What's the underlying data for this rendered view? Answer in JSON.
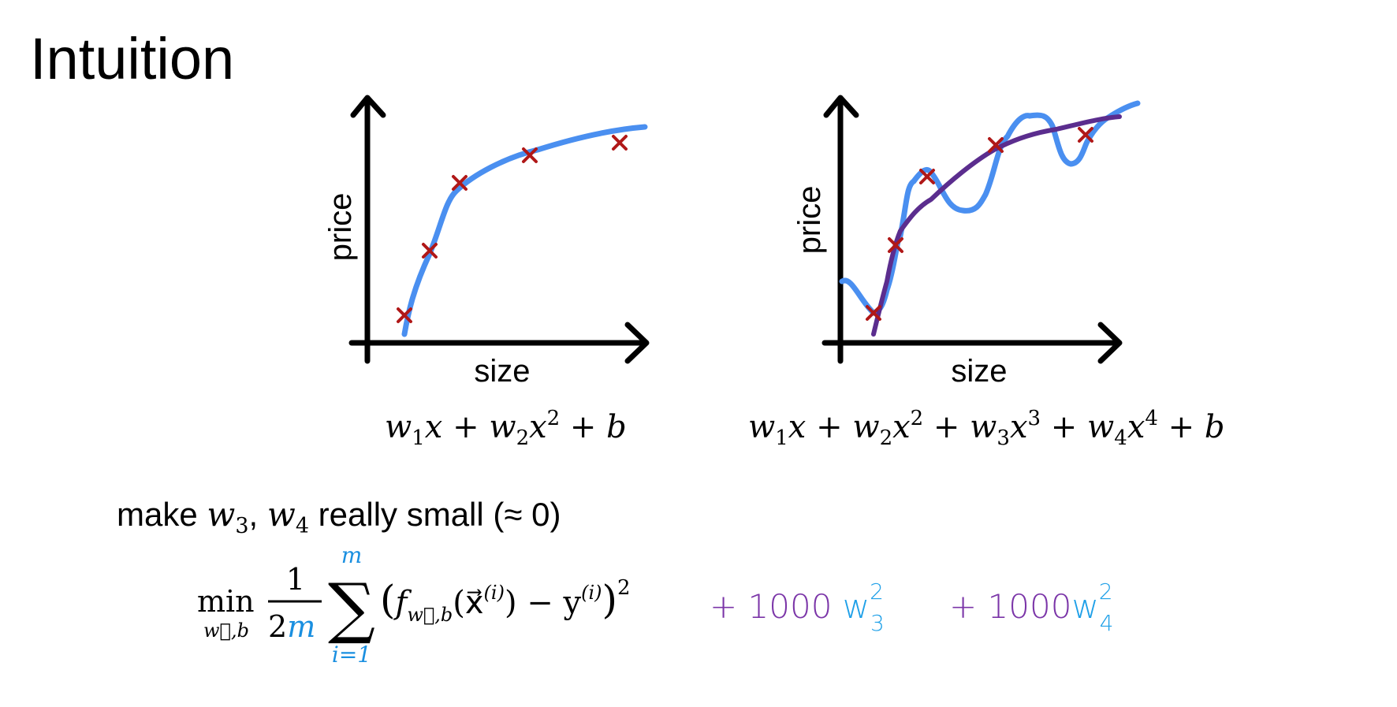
{
  "title": "Intuition",
  "colors": {
    "axis": "#000000",
    "data_point": "#b01818",
    "fit_curve_blue": "#4a8ff0",
    "fit_curve_purple": "#5b2d8e",
    "handwritten_purple": "#7b35a8",
    "handwritten_blue": "#1fa0e8",
    "formula_blue": "#1a8fe0"
  },
  "left_plot": {
    "y_label": "price",
    "x_label": "size",
    "formula": {
      "w1": "w",
      "s1": "1",
      "x1": "x + ",
      "w2": "w",
      "s2": "2",
      "x2": "x",
      "p2": "2",
      "tail": " + b"
    }
  },
  "right_plot": {
    "y_label": "price",
    "x_label": "size",
    "formula": {
      "w1": "w",
      "s1": "1",
      "x1": "x + ",
      "w2": "w",
      "s2": "2",
      "x2": "x",
      "p2": "2",
      "plus2": " + ",
      "w3": "w",
      "s3": "3",
      "x3": "x",
      "p3": "3",
      "plus3": " + ",
      "w4": "w",
      "s4": "4",
      "x4": "x",
      "p4": "4",
      "tail": " + b"
    }
  },
  "note": {
    "make": "make ",
    "w": "w",
    "s3": "3",
    "comma": ", ",
    "w4": "w",
    "s4": "4",
    "rest": " really small (≈ 0)"
  },
  "cost": {
    "min": "min",
    "min_sub": "w⃗,b",
    "one": "1",
    "two": "2",
    "m": "m",
    "sigma": "∑",
    "sum_top": "m",
    "sum_bottom": "i=1",
    "open": "(",
    "f": "f",
    "f_sub": "w⃗,b",
    "xvec": "(x⃗",
    "xsup": "(i)",
    "mid": ") − y",
    "ysup": "(i)",
    "close": ")",
    "sq": "2",
    "reg1": "+ 1000 ",
    "reg1_w": "w",
    "reg1_sup": "2",
    "reg1_sub": "3",
    "reg2": "+ 1000",
    "reg2_w": "w",
    "reg2_sup": "2",
    "reg2_sub": "4"
  }
}
